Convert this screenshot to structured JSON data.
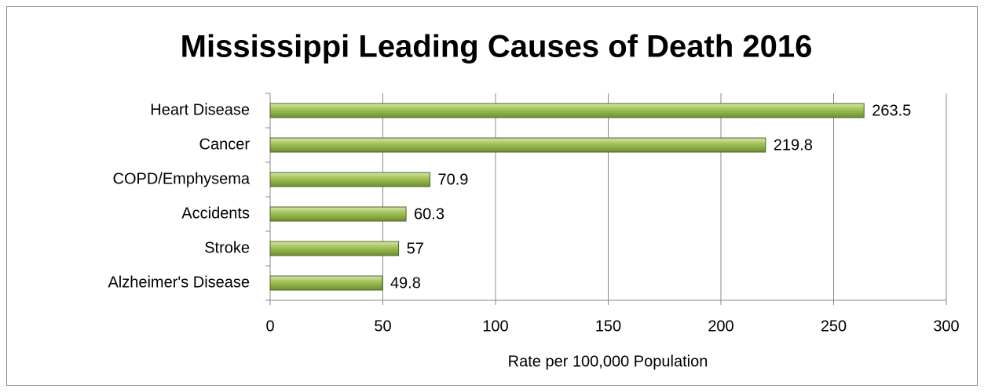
{
  "chart_data": {
    "type": "hbar",
    "title": "Mississippi Leading Causes of Death 2016",
    "categories": [
      "Heart Disease",
      "Cancer",
      "COPD/Emphysema",
      "Accidents",
      "Stroke",
      "Alzheimer's Disease"
    ],
    "values": [
      263.5,
      219.8,
      70.9,
      60.3,
      57,
      49.8
    ],
    "color": "#9bbb59",
    "xlabel": "Rate per 100,000 Population",
    "xlim": [
      0,
      300
    ],
    "xticks": [
      0,
      50,
      100,
      150,
      200,
      250,
      300
    ],
    "grid": true
  }
}
